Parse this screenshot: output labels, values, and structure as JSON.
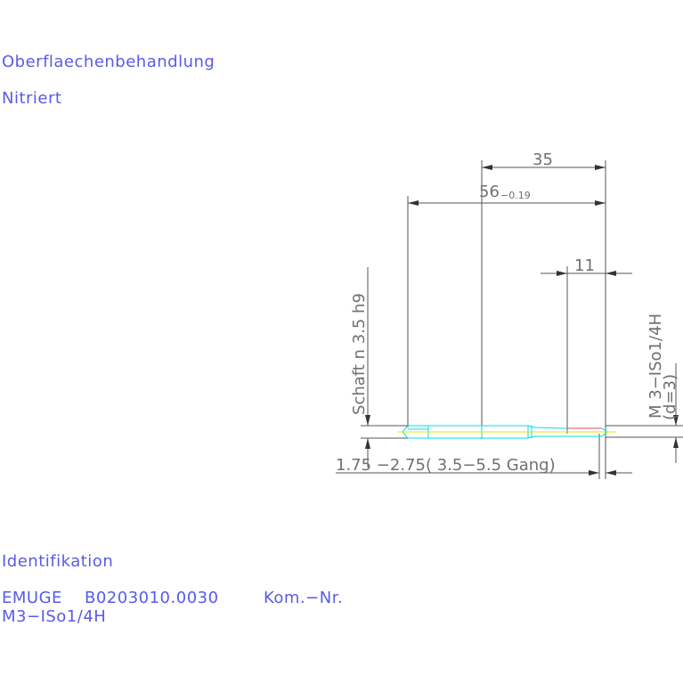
{
  "surface": {
    "heading": "Oberflaechenbehandlung",
    "value": "Nitriert"
  },
  "identification": {
    "heading": "Identifikation",
    "maker": "EMUGE",
    "part_number": "B0203010.0030",
    "kom_label": "Kom.−Nr.",
    "designation": "M3−ISo1/4H"
  },
  "drawing": {
    "dim_35": "35",
    "dim_56": "56",
    "dim_56_tol": "−0.19",
    "dim_11": "11",
    "shank_label": "Schaft n 3.5  h9",
    "thread_label": "M 3−ISo1/4H",
    "thread_d": "(d=3)",
    "chamfer_label": "1.75 −2.75( 3.5−5.5  Gang)"
  },
  "colors": {
    "text": "#5a5ae6",
    "dim": "#606060",
    "tool": "#00e5e5",
    "axis": "#e5e500"
  }
}
